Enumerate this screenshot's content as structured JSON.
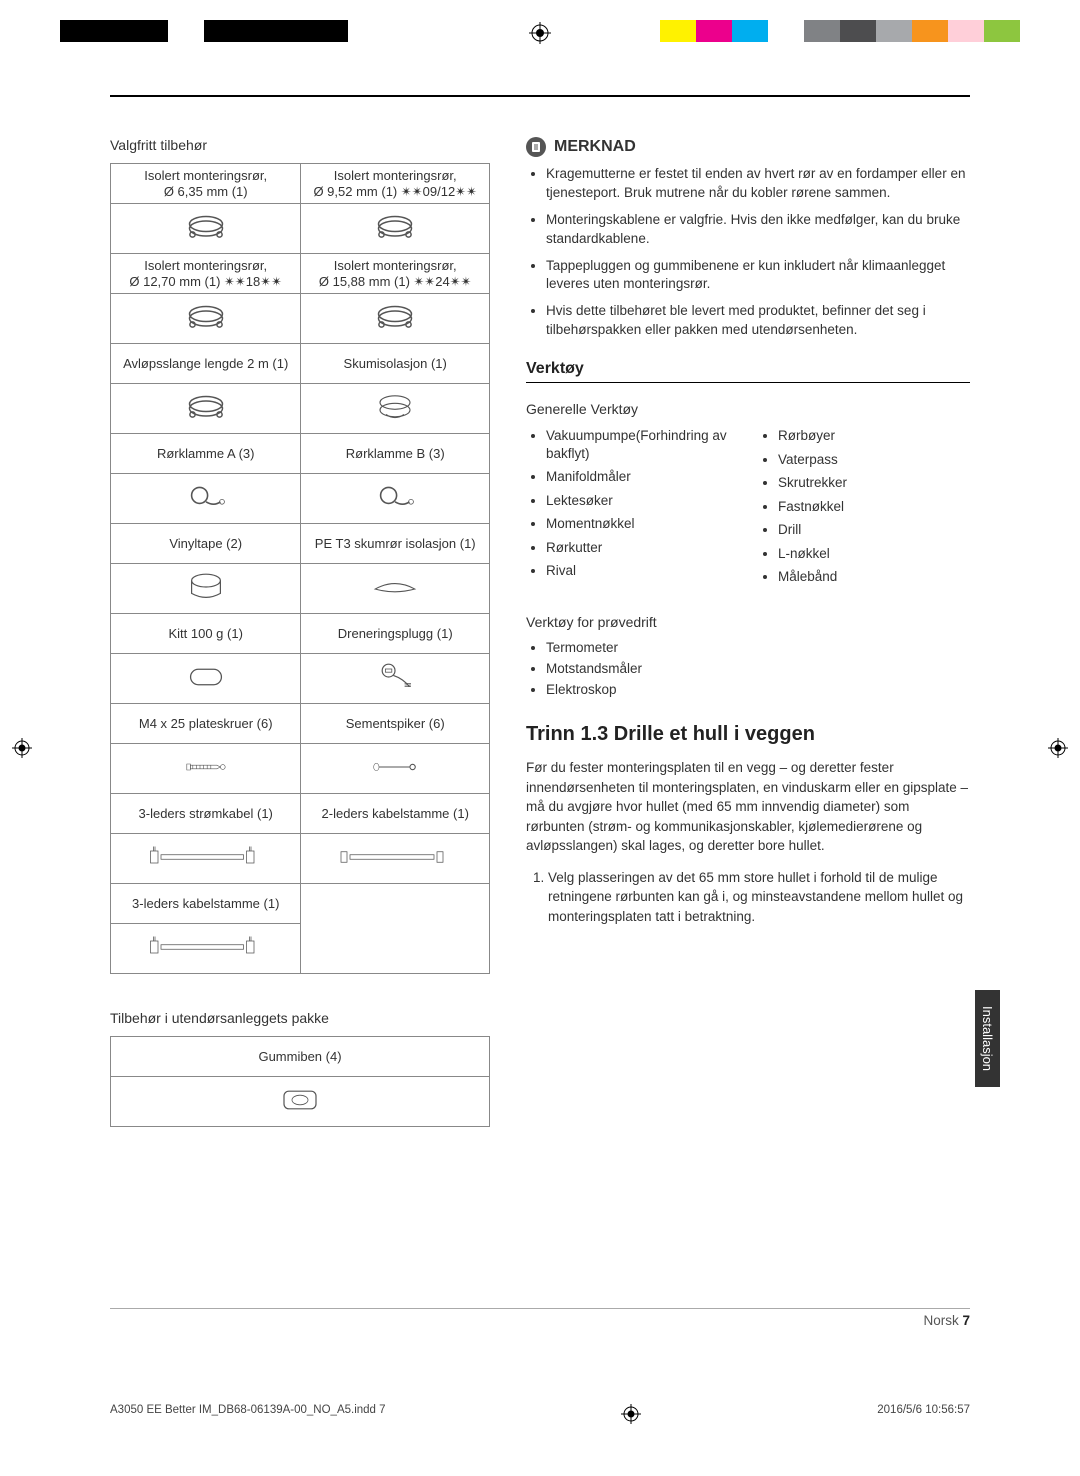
{
  "printBars": {
    "leftSwatches": [
      "#000000",
      "#000000",
      "#000000",
      "#ffffff",
      "#000000",
      "#000000",
      "#000000",
      "#000000",
      "#ffffff"
    ],
    "rightSwatches": [
      "#fff200",
      "#ec008c",
      "#00aeef",
      "#ffffff",
      "#808285",
      "#4d4d4f",
      "#a7a9ac",
      "#f7941d",
      "#ffcfd9",
      "#8dc63f"
    ]
  },
  "optionalTitle": "Valgfritt tilbehør",
  "partsTable": [
    [
      "Isolert monteringsrør, Ø 6,35 mm (1)",
      "Isolert monteringsrør, Ø 9,52 mm (1) ✴✴09/12✴✴"
    ],
    [
      "Isolert monteringsrør, Ø 12,70 mm (1) ✴✴18✴✴",
      "Isolert monteringsrør, Ø 15,88 mm (1) ✴✴24✴✴"
    ],
    [
      "Avløpsslange lengde 2 m (1)",
      "Skumisolasjon (1)"
    ],
    [
      "Rørklamme A (3)",
      "Rørklamme B (3)"
    ],
    [
      "Vinyltape (2)",
      "PE T3 skumrør isolasjon (1)"
    ],
    [
      "Kitt 100 g (1)",
      "Dreneringsplugg (1)"
    ],
    [
      "M4 x 25 plateskruer (6)",
      "Sementspiker (6)"
    ],
    [
      "3-leders strømkabel (1)",
      "2-leders kabelstamme (1)"
    ],
    [
      "3-leders kabelstamme (1)",
      ""
    ]
  ],
  "outdoorPackTitle": "Tilbehør i utendørsanleggets pakke",
  "outdoorItem": "Gummiben (4)",
  "notesBadge": "MERKNAD",
  "notes": [
    "Kragemutterne er festet til enden av hvert rør av en fordamper eller en tjenesteport. Bruk mutrene når du kobler rørene sammen.",
    "Monteringskablene er valgfrie. Hvis den ikke medfølger, kan du bruke standardkablene.",
    "Tappepluggen og gummibenene er kun inkludert når klimaanlegget leveres uten monteringsrør.",
    "Hvis dette tilbehøret ble levert med produktet, befinner det seg i tilbehørspakken eller pakken med utendørsenheten."
  ],
  "toolsHeader": "Verktøy",
  "generalTools": "Generelle Verktøy",
  "toolsLeft": [
    "Vakuumpumpe(Forhindring av bakflyt)",
    "Manifoldmåler",
    "Lektesøker",
    "Momentnøkkel",
    "Rørkutter",
    "Rival"
  ],
  "toolsRight": [
    "Rørbøyer",
    "Vaterpass",
    "Skrutrekker",
    "Fastnøkkel",
    "Drill",
    "L-nøkkel",
    "Målebånd"
  ],
  "trialHeader": "Verktøy for prøvedrift",
  "trialTools": [
    "Termometer",
    "Motstandsmåler",
    "Elektroskop"
  ],
  "stepHeading": "Trinn 1.3  Drille et hull i veggen",
  "stepIntro": "Før du fester monteringsplaten til en vegg – og deretter fester innendørsenheten til monteringsplaten, en vinduskarm eller en gipsplate – må du avgjøre hvor hullet (med 65 mm innvendig diameter) som rørbunten (strøm- og kommunikasjonskabler, kjølemedierørene og avløpsslangen) skal lages, og deretter bore hullet.",
  "stepList": [
    "Velg plasseringen av det 65 mm store hullet i forhold til de mulige retningene rørbunten kan gå i, og minsteavstandene mellom hullet og monteringsplaten tatt i betraktning."
  ],
  "sideTab": "Installasjon",
  "pageLang": "Norsk",
  "pageNum": "7",
  "inddFile": "A3050 EE Better IM_DB68-06139A-00_NO_A5.indd   7",
  "inddTime": "2016/5/6   10:56:57"
}
